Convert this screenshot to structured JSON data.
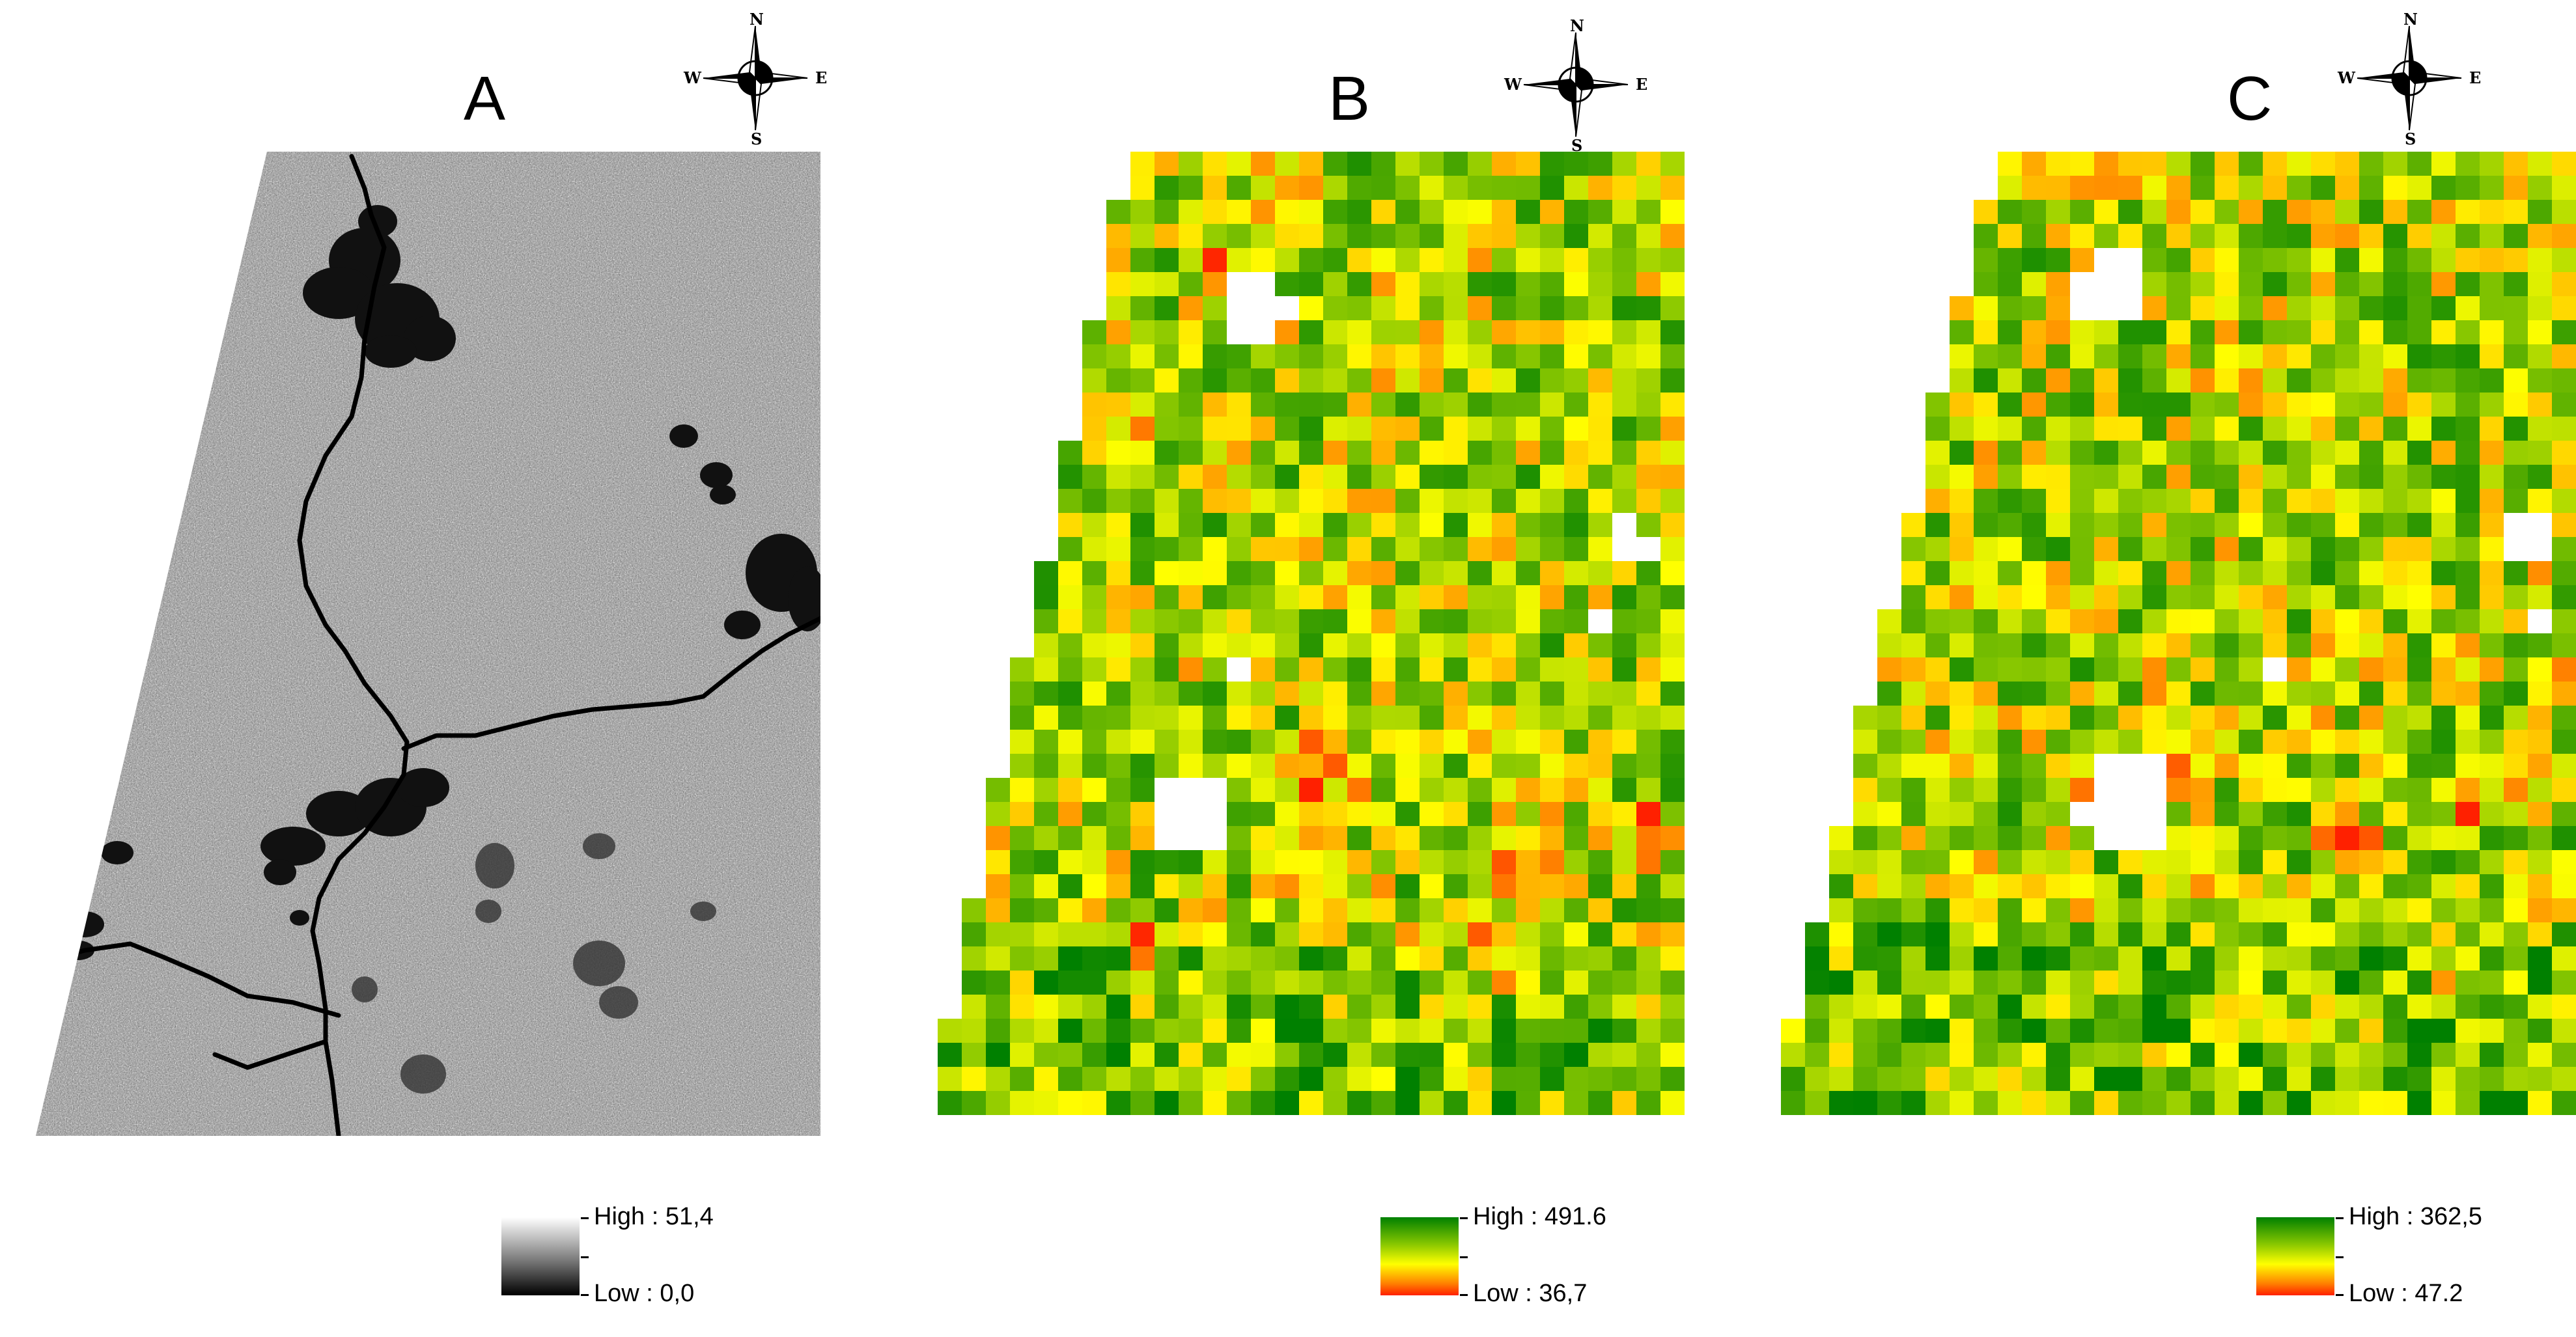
{
  "panels": [
    {
      "id": "A",
      "letter": "A",
      "kind": "radar-grayscale",
      "legend": {
        "high": "High : 51,4",
        "low": "Low : 0,0",
        "ramp": "white-to-black"
      }
    },
    {
      "id": "B",
      "letter": "B",
      "kind": "grid-heatmap",
      "legend": {
        "high": "High : 491.6",
        "low": "Low : 36,7",
        "ramp": "green-yellow-red"
      }
    },
    {
      "id": "C",
      "letter": "C",
      "kind": "grid-heatmap",
      "legend": {
        "high": "High : 362,5",
        "low": "Low : 47.2",
        "ramp": "green-yellow-red"
      }
    }
  ],
  "compass": {
    "n": "N",
    "s": "S",
    "e": "E",
    "w": "W"
  },
  "colors": {
    "high": "#008000",
    "mid": "#ffff00",
    "low": "#ff2000",
    "nodata": "#ffffff"
  }
}
